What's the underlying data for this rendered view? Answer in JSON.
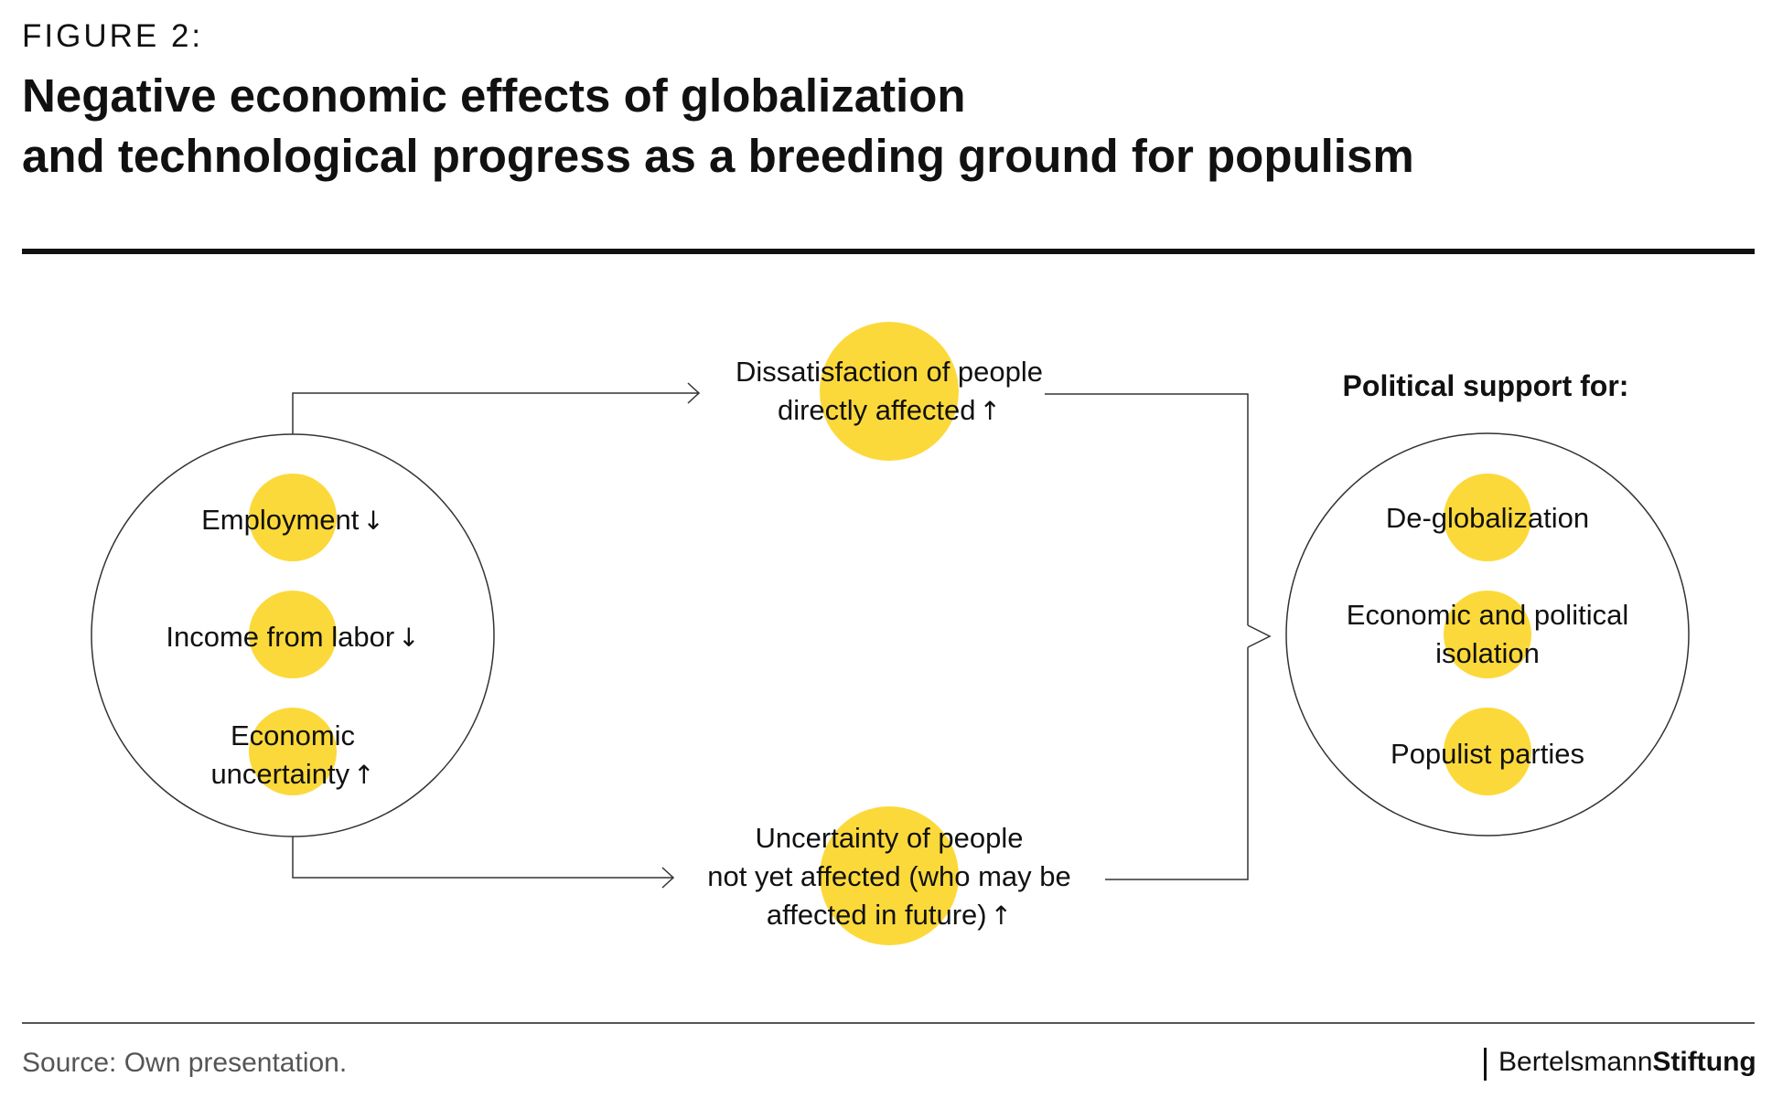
{
  "figure_label": "FIGURE 2:",
  "title_line1": "Negative economic effects of globalization",
  "title_line2": "and technological progress as a breeding ground for populism",
  "left_circle": {
    "items": [
      {
        "text": "Employment",
        "arrow": "↓"
      },
      {
        "text": "Income from labor",
        "arrow": "↓"
      },
      {
        "line1": "Economic",
        "line2": "uncertainty",
        "arrow": "↑"
      }
    ]
  },
  "middle_top": {
    "line1": "Dissatisfaction of people",
    "line2": "directly affected",
    "arrow": "↑"
  },
  "middle_bottom": {
    "line1": "Uncertainty of people",
    "line2": "not yet affected (who may be",
    "line3": "affected in future)",
    "arrow": "↑"
  },
  "right": {
    "heading": "Political support for:",
    "items": [
      {
        "text": "De-globalization"
      },
      {
        "line1": "Economic and political",
        "line2": "isolation"
      },
      {
        "text": "Populist parties"
      }
    ]
  },
  "source": "Source: Own presentation.",
  "brand_regular": "Bertelsmann",
  "brand_bold": "Stiftung",
  "colors": {
    "accent_yellow": "#FCD93A",
    "line": "#333333"
  }
}
